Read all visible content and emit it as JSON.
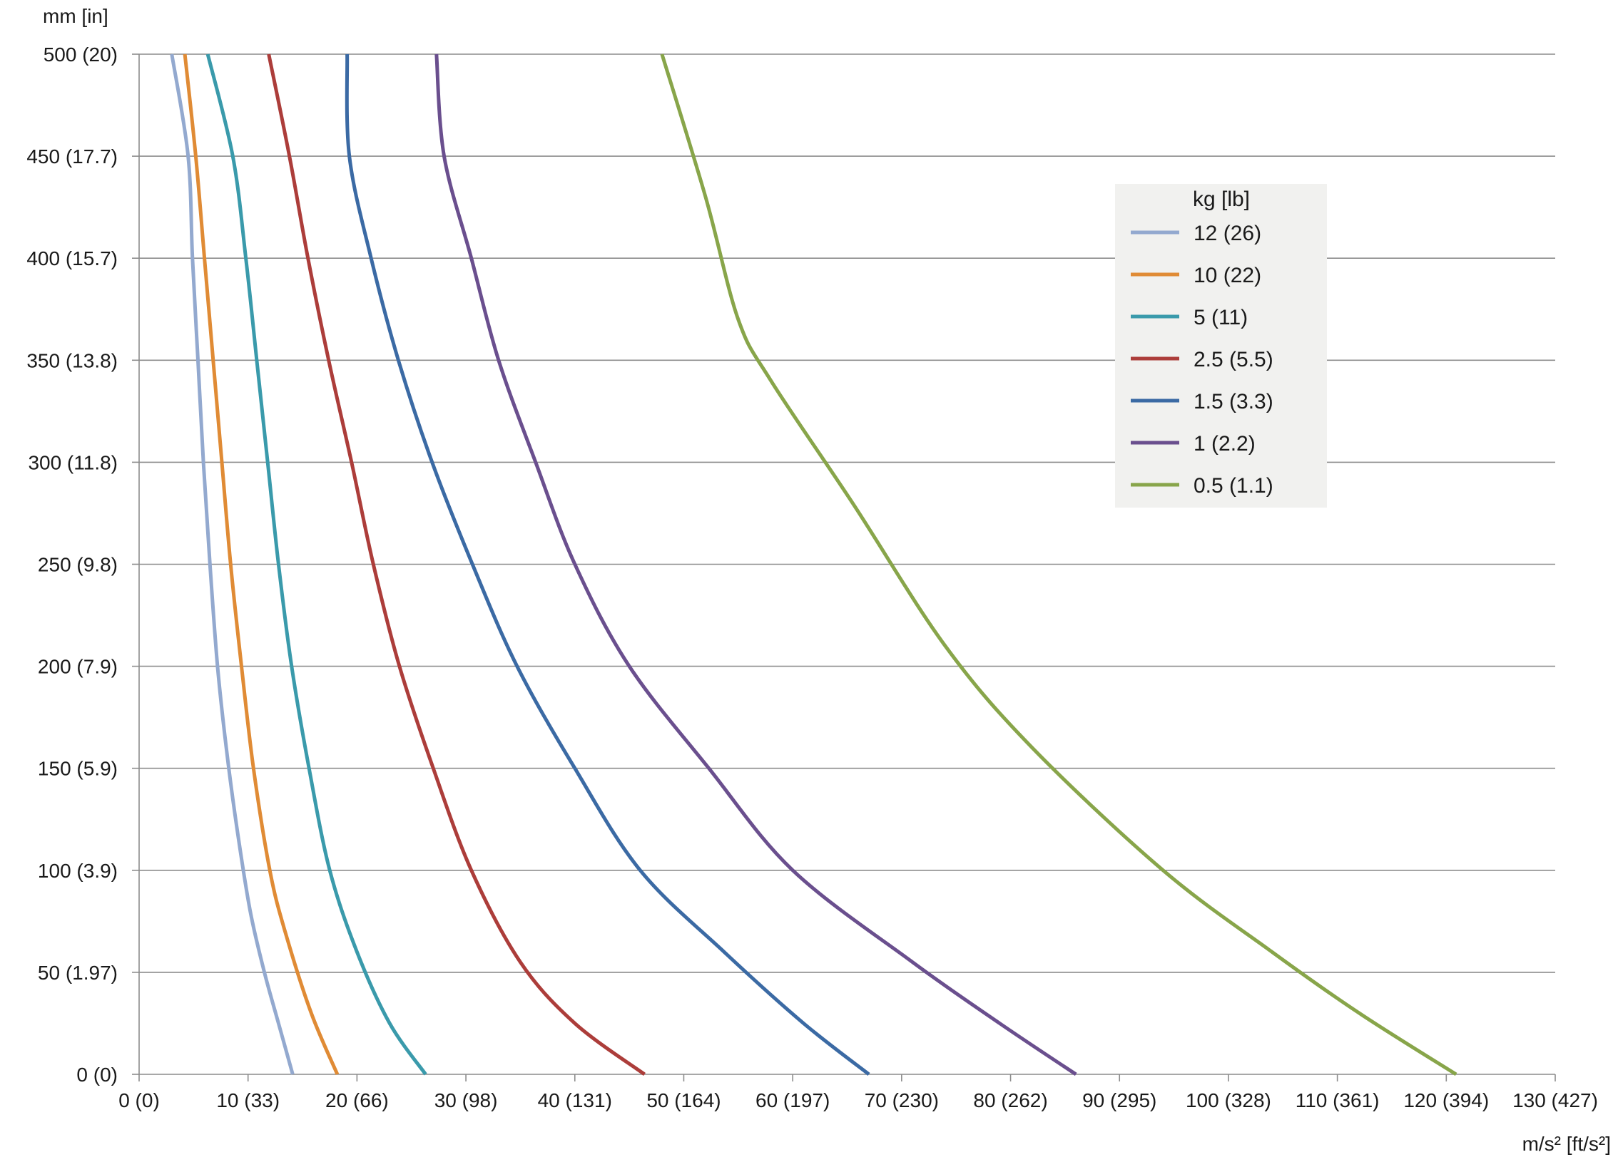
{
  "chart_data": {
    "type": "line",
    "title": "",
    "xlabel": "m/s² [ft/s²]",
    "ylabel": "mm [in]",
    "xlim": [
      0,
      130
    ],
    "ylim": [
      0,
      500
    ],
    "grid": "horizontal",
    "legend_position": "top-right",
    "x_ticks": [
      {
        "value": 0,
        "label": "0 (0)"
      },
      {
        "value": 10,
        "label": "10 (33)"
      },
      {
        "value": 20,
        "label": "20 (66)"
      },
      {
        "value": 30,
        "label": "30 (98)"
      },
      {
        "value": 40,
        "label": "40 (131)"
      },
      {
        "value": 50,
        "label": "50 (164)"
      },
      {
        "value": 60,
        "label": "60 (197)"
      },
      {
        "value": 70,
        "label": "70 (230)"
      },
      {
        "value": 80,
        "label": "80 (262)"
      },
      {
        "value": 90,
        "label": "90 (295)"
      },
      {
        "value": 100,
        "label": "100 (328)"
      },
      {
        "value": 110,
        "label": "110 (361)"
      },
      {
        "value": 120,
        "label": "120 (394)"
      },
      {
        "value": 130,
        "label": "130 (427)"
      }
    ],
    "y_ticks": [
      {
        "value": 0,
        "label": "0 (0)"
      },
      {
        "value": 50,
        "label": "50 (1.97)"
      },
      {
        "value": 100,
        "label": "100 (3.9)"
      },
      {
        "value": 150,
        "label": "150 (5.9)"
      },
      {
        "value": 200,
        "label": "200 (7.9)"
      },
      {
        "value": 250,
        "label": "250 (9.8)"
      },
      {
        "value": 300,
        "label": "300 (11.8)"
      },
      {
        "value": 350,
        "label": "350 (13.8)"
      },
      {
        "value": 400,
        "label": "400 (15.7)"
      },
      {
        "value": 450,
        "label": "450 (17.7)"
      },
      {
        "value": 500,
        "label": "500 (20)"
      }
    ],
    "legend_title": "kg [lb]",
    "series": [
      {
        "name": "12 (26)",
        "color": "#93a9cf",
        "points": [
          [
            14.1,
            0
          ],
          [
            12.8,
            25
          ],
          [
            11.5,
            50
          ],
          [
            10.2,
            80
          ],
          [
            9.0,
            120
          ],
          [
            8.0,
            160
          ],
          [
            7.2,
            200
          ],
          [
            6.5,
            250
          ],
          [
            5.9,
            300
          ],
          [
            5.4,
            350
          ],
          [
            4.9,
            400
          ],
          [
            4.5,
            450
          ],
          [
            3.0,
            500
          ]
        ]
      },
      {
        "name": "10 (22)",
        "color": "#e08b35",
        "points": [
          [
            18.2,
            0
          ],
          [
            15.8,
            30
          ],
          [
            13.4,
            70
          ],
          [
            12.0,
            100
          ],
          [
            10.5,
            150
          ],
          [
            9.4,
            200
          ],
          [
            8.4,
            250
          ],
          [
            7.6,
            300
          ],
          [
            6.8,
            350
          ],
          [
            6.0,
            400
          ],
          [
            5.2,
            450
          ],
          [
            4.2,
            500
          ]
        ]
      },
      {
        "name": "5 (11)",
        "color": "#3a9aab",
        "points": [
          [
            26.3,
            0
          ],
          [
            23.0,
            25
          ],
          [
            20.0,
            60
          ],
          [
            17.5,
            100
          ],
          [
            15.6,
            150
          ],
          [
            14.0,
            200
          ],
          [
            12.8,
            250
          ],
          [
            11.8,
            300
          ],
          [
            10.8,
            350
          ],
          [
            9.8,
            400
          ],
          [
            8.6,
            450
          ],
          [
            6.3,
            500
          ]
        ]
      },
      {
        "name": "2.5 (5.5)",
        "color": "#ac3d3a",
        "points": [
          [
            46.4,
            0
          ],
          [
            40.0,
            25
          ],
          [
            35.0,
            55
          ],
          [
            30.5,
            100
          ],
          [
            27.0,
            150
          ],
          [
            23.9,
            200
          ],
          [
            21.5,
            250
          ],
          [
            19.5,
            300
          ],
          [
            17.4,
            350
          ],
          [
            15.5,
            400
          ],
          [
            13.8,
            450
          ],
          [
            11.9,
            500
          ]
        ]
      },
      {
        "name": "1.5 (3.3)",
        "color": "#3b6aa4",
        "points": [
          [
            67.0,
            0
          ],
          [
            61.0,
            25
          ],
          [
            53.7,
            60
          ],
          [
            46.0,
            100
          ],
          [
            40.0,
            150
          ],
          [
            34.7,
            200
          ],
          [
            30.6,
            250
          ],
          [
            26.9,
            300
          ],
          [
            23.8,
            350
          ],
          [
            21.3,
            400
          ],
          [
            19.3,
            450
          ],
          [
            19.1,
            500
          ]
        ]
      },
      {
        "name": "1 (2.2)",
        "color": "#6a4f8e",
        "points": [
          [
            86.0,
            0
          ],
          [
            79.0,
            25
          ],
          [
            71.0,
            55
          ],
          [
            60.0,
            100
          ],
          [
            52.3,
            150
          ],
          [
            45.0,
            200
          ],
          [
            40.0,
            250
          ],
          [
            36.4,
            300
          ],
          [
            33.0,
            350
          ],
          [
            30.5,
            400
          ],
          [
            28.0,
            450
          ],
          [
            27.3,
            500
          ]
        ]
      },
      {
        "name": "0.5 (1.1)",
        "color": "#88a54a",
        "points": [
          [
            120.9,
            0
          ],
          [
            112.0,
            30
          ],
          [
            104.0,
            60
          ],
          [
            94.0,
            100
          ],
          [
            82.0,
            160
          ],
          [
            74.0,
            210
          ],
          [
            65.5,
            280
          ],
          [
            58.0,
            340
          ],
          [
            55.0,
            370
          ],
          [
            52.0,
            430
          ],
          [
            48.0,
            500
          ]
        ]
      }
    ]
  }
}
